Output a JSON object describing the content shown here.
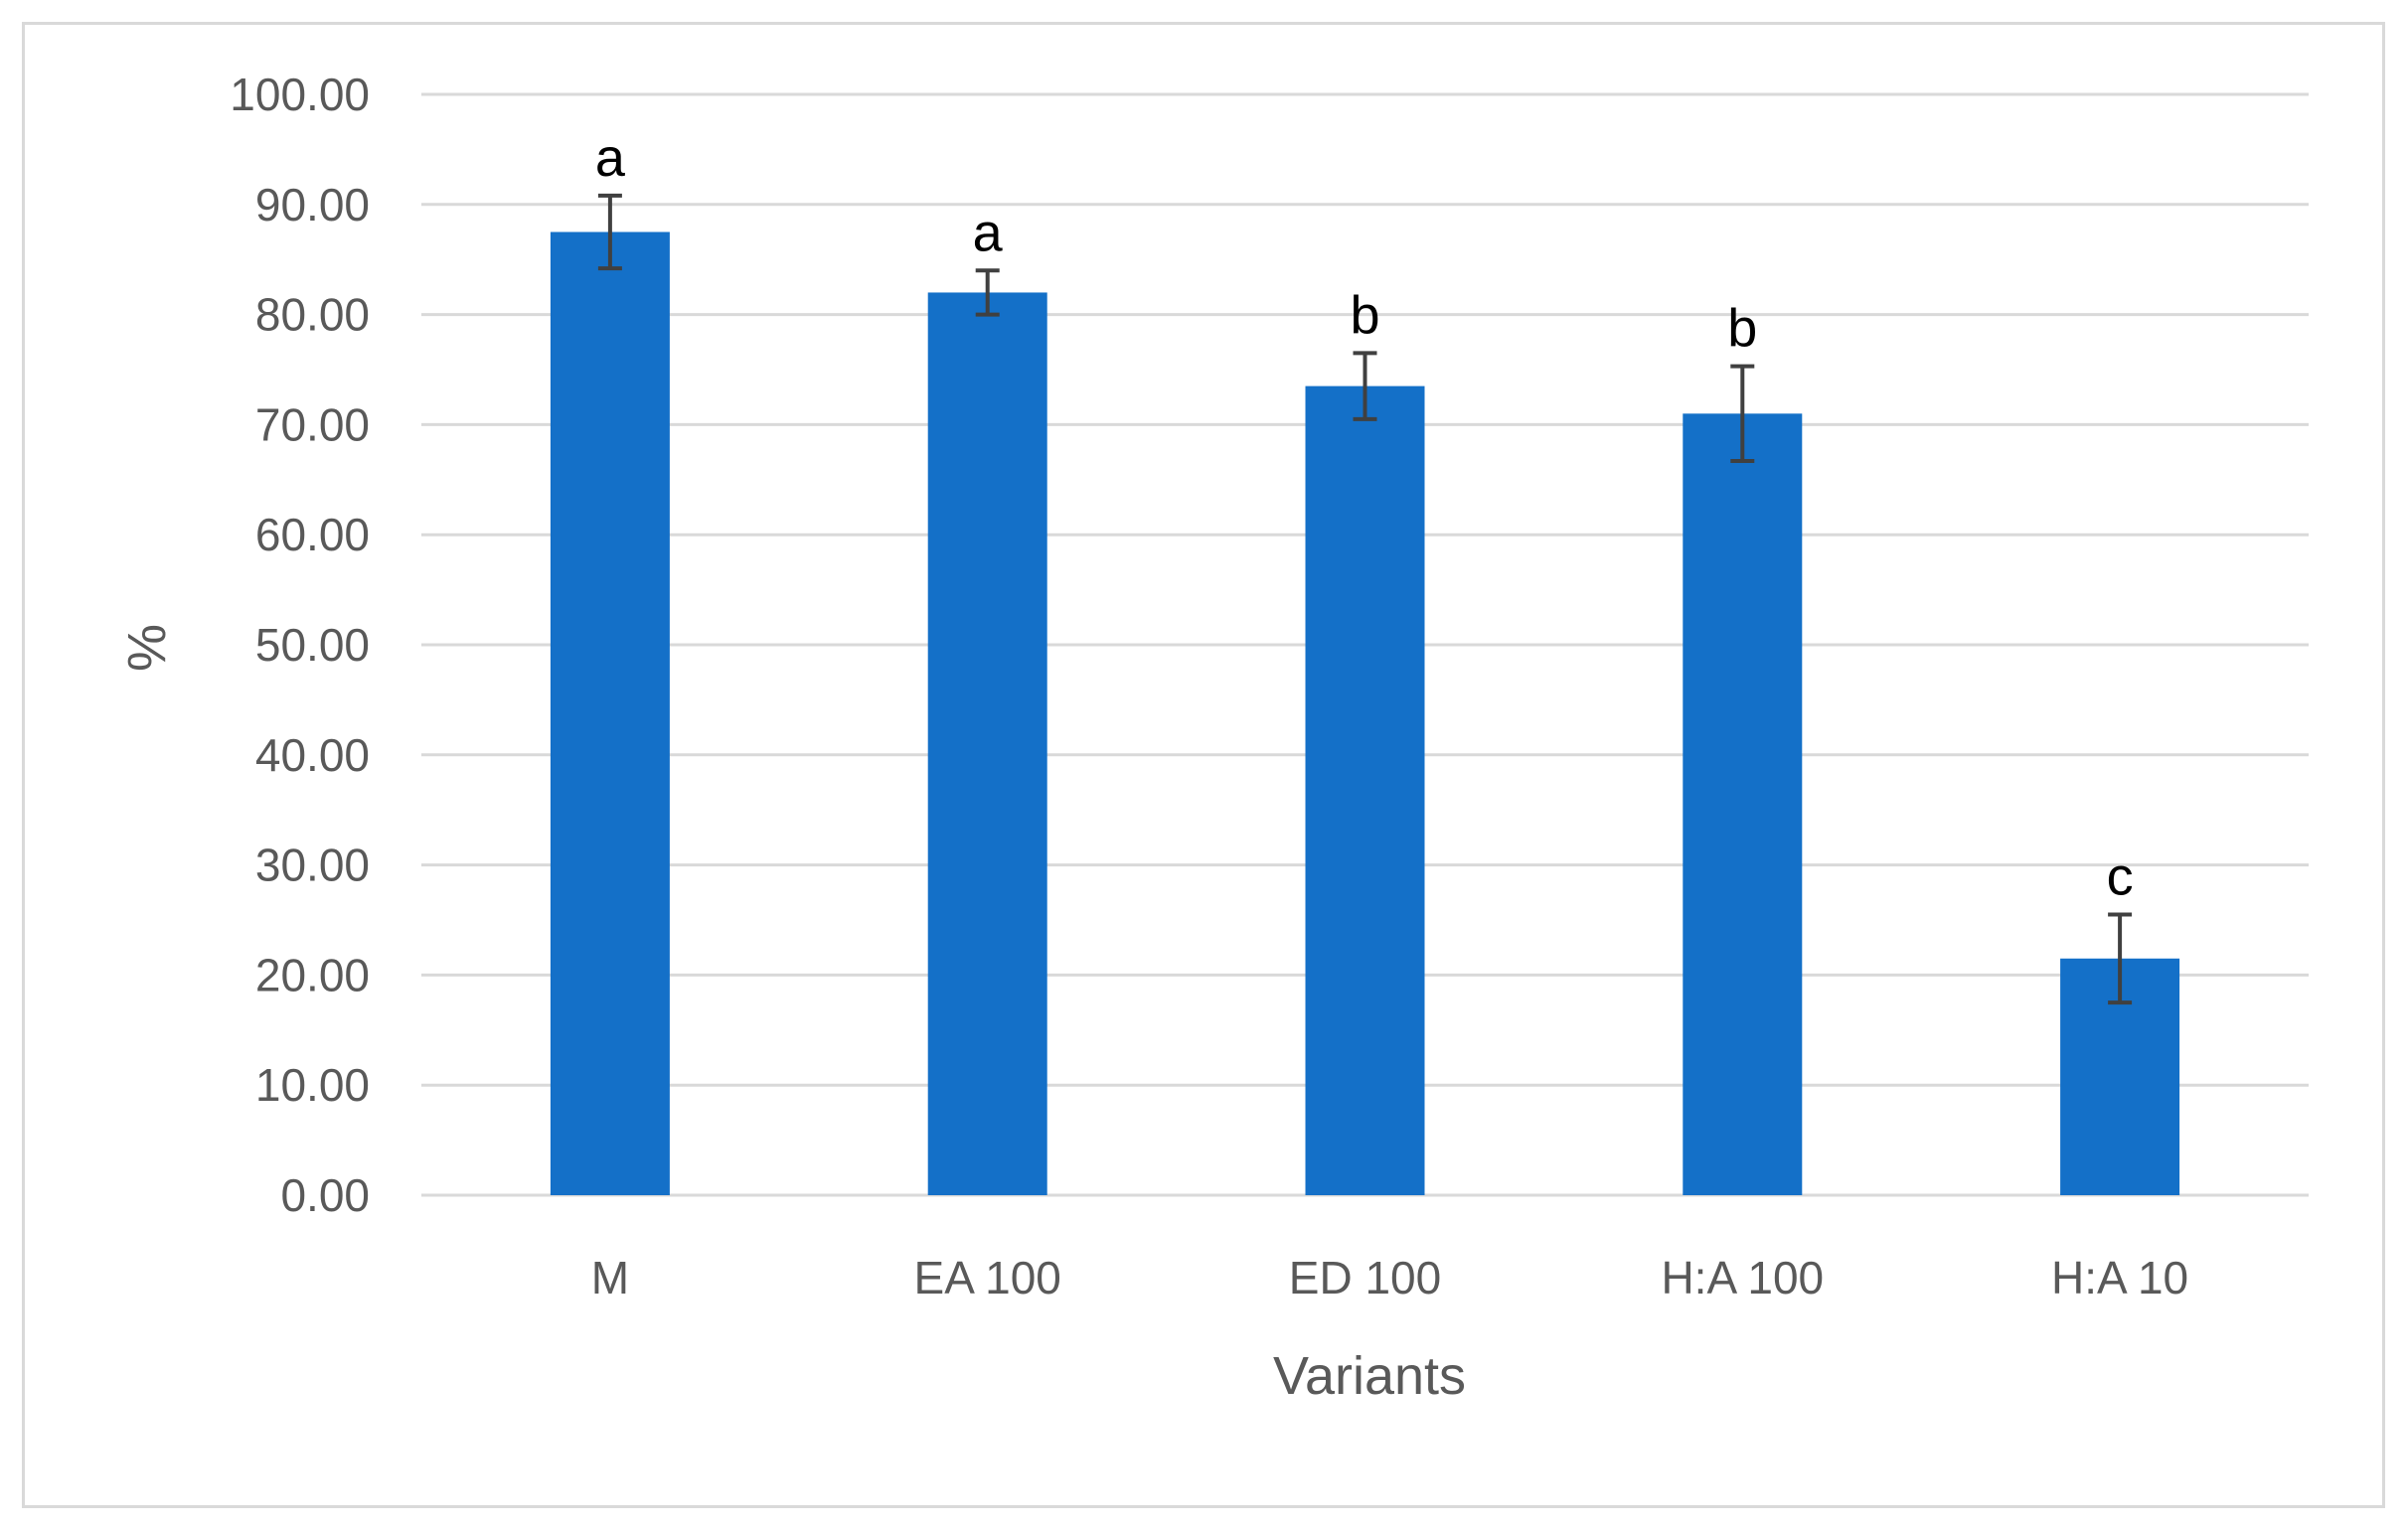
{
  "chart_data": {
    "type": "bar",
    "title": "",
    "xlabel": "Variants",
    "ylabel": "%",
    "ylim": [
      0,
      100
    ],
    "yticks": [
      "0.00",
      "10.00",
      "20.00",
      "30.00",
      "40.00",
      "50.00",
      "60.00",
      "70.00",
      "80.00",
      "90.00",
      "100.00"
    ],
    "categories": [
      "M",
      "EA 100",
      "ED 100",
      "H:A 100",
      "H:A 10"
    ],
    "values": [
      87.5,
      82.0,
      73.5,
      71.0,
      21.5
    ],
    "errors": [
      3.3,
      2.0,
      3.0,
      4.3,
      4.0
    ],
    "significance": [
      "a",
      "a",
      "b",
      "b",
      "c"
    ],
    "grid": true,
    "legend": "none",
    "colors": {
      "bar": "#1470c8",
      "error_bar": "#404040",
      "grid": "#d9d9d9",
      "text": "#595959"
    }
  }
}
